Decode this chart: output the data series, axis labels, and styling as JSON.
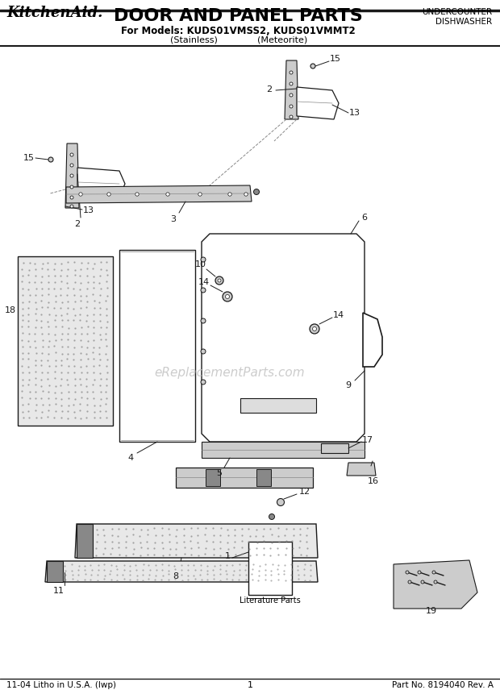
{
  "title": "DOOR AND PANEL PARTS",
  "brand": "KitchenAid.",
  "subtitle1": "For Models: KUDS01VMSS2, KUDS01VMMT2",
  "subtitle2_left": "(Stainless)",
  "subtitle2_right": "(Meteorite)",
  "top_right1": "UNDERCOUNTER",
  "top_right2": "DISHWASHER",
  "footer_left": "11-04 Litho in U.S.A. (lwp)",
  "footer_center": "1",
  "footer_right": "Part No. 8194040 Rev. A",
  "watermark": "eReplacementParts.com",
  "lit_label": "Literature Parts",
  "bg_color": "#ffffff",
  "line_color": "#1a1a1a",
  "gray_fill": "#cccccc",
  "gray_dark": "#888888",
  "gray_light": "#e4e4e4"
}
